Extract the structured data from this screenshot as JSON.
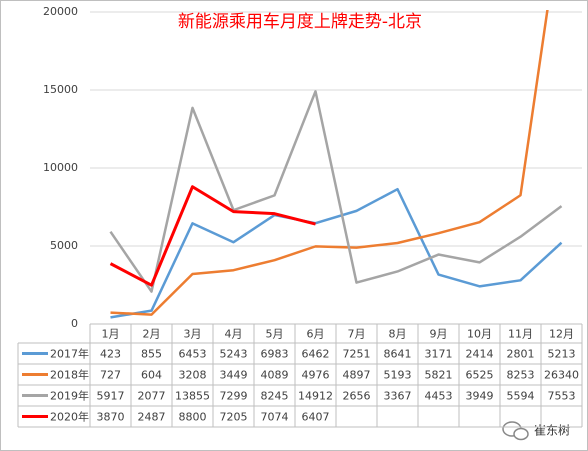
{
  "chart_data": {
    "type": "line",
    "title": "新能源乘用车月度上牌走势-北京",
    "categories": [
      "1月",
      "2月",
      "3月",
      "4月",
      "5月",
      "6月",
      "7月",
      "8月",
      "9月",
      "10月",
      "11月",
      "12月"
    ],
    "series": [
      {
        "name": "2017年",
        "color": "#5b9bd5",
        "values": [
          423,
          855,
          6453,
          5243,
          6983,
          6462,
          7251,
          8641,
          3171,
          2414,
          2801,
          5213
        ]
      },
      {
        "name": "2018年",
        "color": "#ed7d31",
        "values": [
          727,
          604,
          3208,
          3449,
          4089,
          4976,
          4897,
          5193,
          5821,
          6525,
          8253,
          26340
        ]
      },
      {
        "name": "2019年",
        "color": "#a5a5a5",
        "values": [
          5917,
          2077,
          13855,
          7299,
          8245,
          14912,
          2656,
          3367,
          4453,
          3949,
          5594,
          7553
        ]
      },
      {
        "name": "2020年",
        "color": "#ff0000",
        "values": [
          3870,
          2487,
          8800,
          7205,
          7074,
          6407,
          null,
          null,
          null,
          null,
          null,
          null
        ]
      }
    ],
    "ylim": [
      0,
      20000
    ],
    "yticks": [
      0,
      5000,
      10000,
      15000,
      20000
    ],
    "grid": true,
    "watermark": "崔东树"
  }
}
